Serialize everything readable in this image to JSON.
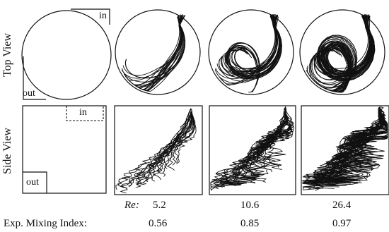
{
  "figure": {
    "row_labels": {
      "top": "Top View",
      "side": "Side View"
    },
    "schematic": {
      "inlet": "in",
      "outlet": "out"
    },
    "re_label": "Re",
    "re_values": [
      "5.2",
      "10.6",
      "26.4"
    ],
    "mixing_label": "Exp. Mixing Index:",
    "mixing_values": [
      "0.56",
      "0.85",
      "0.97"
    ],
    "stroke_color": "#111111"
  }
}
